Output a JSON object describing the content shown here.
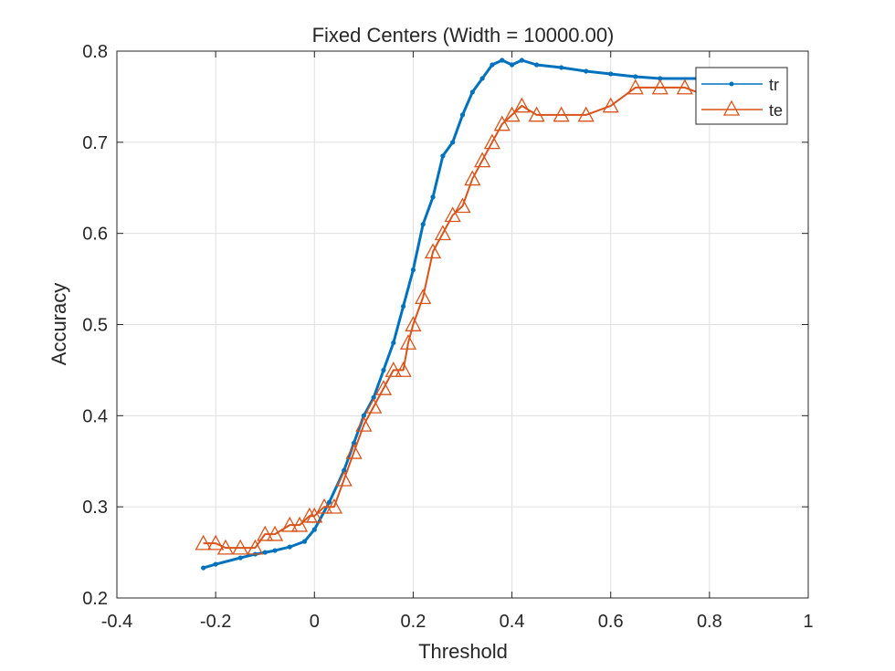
{
  "chart_data": {
    "type": "line",
    "title": "Fixed Centers (Width = 10000.00)",
    "xlabel": "Threshold",
    "ylabel": "Accuracy",
    "xlim": [
      -0.4,
      1
    ],
    "ylim": [
      0.2,
      0.8
    ],
    "xticks": [
      -0.4,
      -0.2,
      0,
      0.2,
      0.4,
      0.6,
      0.8,
      1
    ],
    "xtick_labels": [
      "-0.4",
      "-0.2",
      "0",
      "0.2",
      "0.4",
      "0.6",
      "0.8",
      "1"
    ],
    "yticks": [
      0.2,
      0.3,
      0.4,
      0.5,
      0.6,
      0.7,
      0.8
    ],
    "ytick_labels": [
      "0.2",
      "0.3",
      "0.4",
      "0.5",
      "0.6",
      "0.7",
      "0.8"
    ],
    "grid": true,
    "legend_position": "top-right",
    "series": [
      {
        "name": "tr",
        "color": "#0072BD",
        "marker": "dot",
        "x": [
          -0.225,
          -0.2,
          -0.15,
          -0.12,
          -0.1,
          -0.08,
          -0.05,
          -0.02,
          0.0,
          0.03,
          0.06,
          0.08,
          0.1,
          0.12,
          0.14,
          0.16,
          0.18,
          0.2,
          0.22,
          0.24,
          0.26,
          0.28,
          0.3,
          0.32,
          0.34,
          0.36,
          0.38,
          0.4,
          0.42,
          0.45,
          0.5,
          0.55,
          0.6,
          0.65,
          0.7,
          0.8
        ],
        "y": [
          0.233,
          0.237,
          0.244,
          0.248,
          0.25,
          0.252,
          0.256,
          0.262,
          0.275,
          0.305,
          0.34,
          0.37,
          0.4,
          0.42,
          0.45,
          0.48,
          0.52,
          0.56,
          0.61,
          0.64,
          0.685,
          0.7,
          0.73,
          0.755,
          0.77,
          0.785,
          0.79,
          0.785,
          0.79,
          0.785,
          0.782,
          0.778,
          0.775,
          0.772,
          0.77,
          0.77
        ]
      },
      {
        "name": "te",
        "color": "#D95319",
        "marker": "triangle",
        "x": [
          -0.225,
          -0.2,
          -0.18,
          -0.15,
          -0.12,
          -0.1,
          -0.08,
          -0.05,
          -0.03,
          -0.01,
          0.0,
          0.02,
          0.04,
          0.06,
          0.08,
          0.1,
          0.12,
          0.14,
          0.16,
          0.18,
          0.19,
          0.2,
          0.22,
          0.24,
          0.26,
          0.28,
          0.3,
          0.32,
          0.34,
          0.36,
          0.38,
          0.4,
          0.42,
          0.45,
          0.5,
          0.55,
          0.6,
          0.65,
          0.7,
          0.75,
          0.8
        ],
        "y": [
          0.26,
          0.26,
          0.255,
          0.255,
          0.255,
          0.27,
          0.27,
          0.28,
          0.28,
          0.29,
          0.29,
          0.3,
          0.3,
          0.33,
          0.36,
          0.39,
          0.41,
          0.43,
          0.45,
          0.45,
          0.48,
          0.5,
          0.53,
          0.58,
          0.6,
          0.62,
          0.63,
          0.66,
          0.68,
          0.7,
          0.72,
          0.73,
          0.74,
          0.73,
          0.73,
          0.73,
          0.74,
          0.76,
          0.76,
          0.76,
          0.75
        ]
      }
    ]
  }
}
